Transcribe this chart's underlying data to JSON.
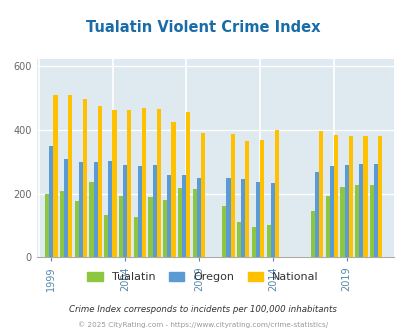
{
  "title": "Tualatin Violent Crime Index",
  "title_color": "#1a6ca8",
  "bg_color": "#deeaf0",
  "fig_bg": "#ffffff",
  "years": [
    1999,
    2000,
    2001,
    2002,
    2003,
    2004,
    2005,
    2006,
    2007,
    2008,
    2009,
    2011,
    2012,
    2013,
    2014,
    2017,
    2018,
    2019,
    2020,
    2021
  ],
  "tualatin": [
    200,
    207,
    177,
    237,
    133,
    192,
    125,
    190,
    180,
    218,
    215,
    160,
    110,
    96,
    103,
    146,
    193,
    219,
    228,
    228
  ],
  "oregon": [
    350,
    307,
    300,
    300,
    303,
    290,
    285,
    290,
    258,
    257,
    248,
    248,
    247,
    237,
    233,
    267,
    285,
    290,
    292,
    292
  ],
  "national": [
    510,
    510,
    495,
    475,
    463,
    463,
    468,
    465,
    425,
    455,
    390,
    387,
    365,
    368,
    400,
    397,
    383,
    379,
    379,
    379
  ],
  "xlabel_years": [
    1999,
    2004,
    2009,
    2014,
    2019
  ],
  "ylim": [
    0,
    620
  ],
  "yticks": [
    0,
    200,
    400,
    600
  ],
  "color_tualatin": "#8dc63f",
  "color_oregon": "#5b9bd5",
  "color_national": "#ffc000",
  "legend_label_1": "Tualatin",
  "legend_label_2": "Oregon",
  "legend_label_3": "National",
  "footnote1": "Crime Index corresponds to incidents per 100,000 inhabitants",
  "footnote2": "© 2025 CityRating.com - https://www.cityrating.com/crime-statistics/",
  "footnote1_color": "#333333",
  "footnote2_color": "#999999"
}
